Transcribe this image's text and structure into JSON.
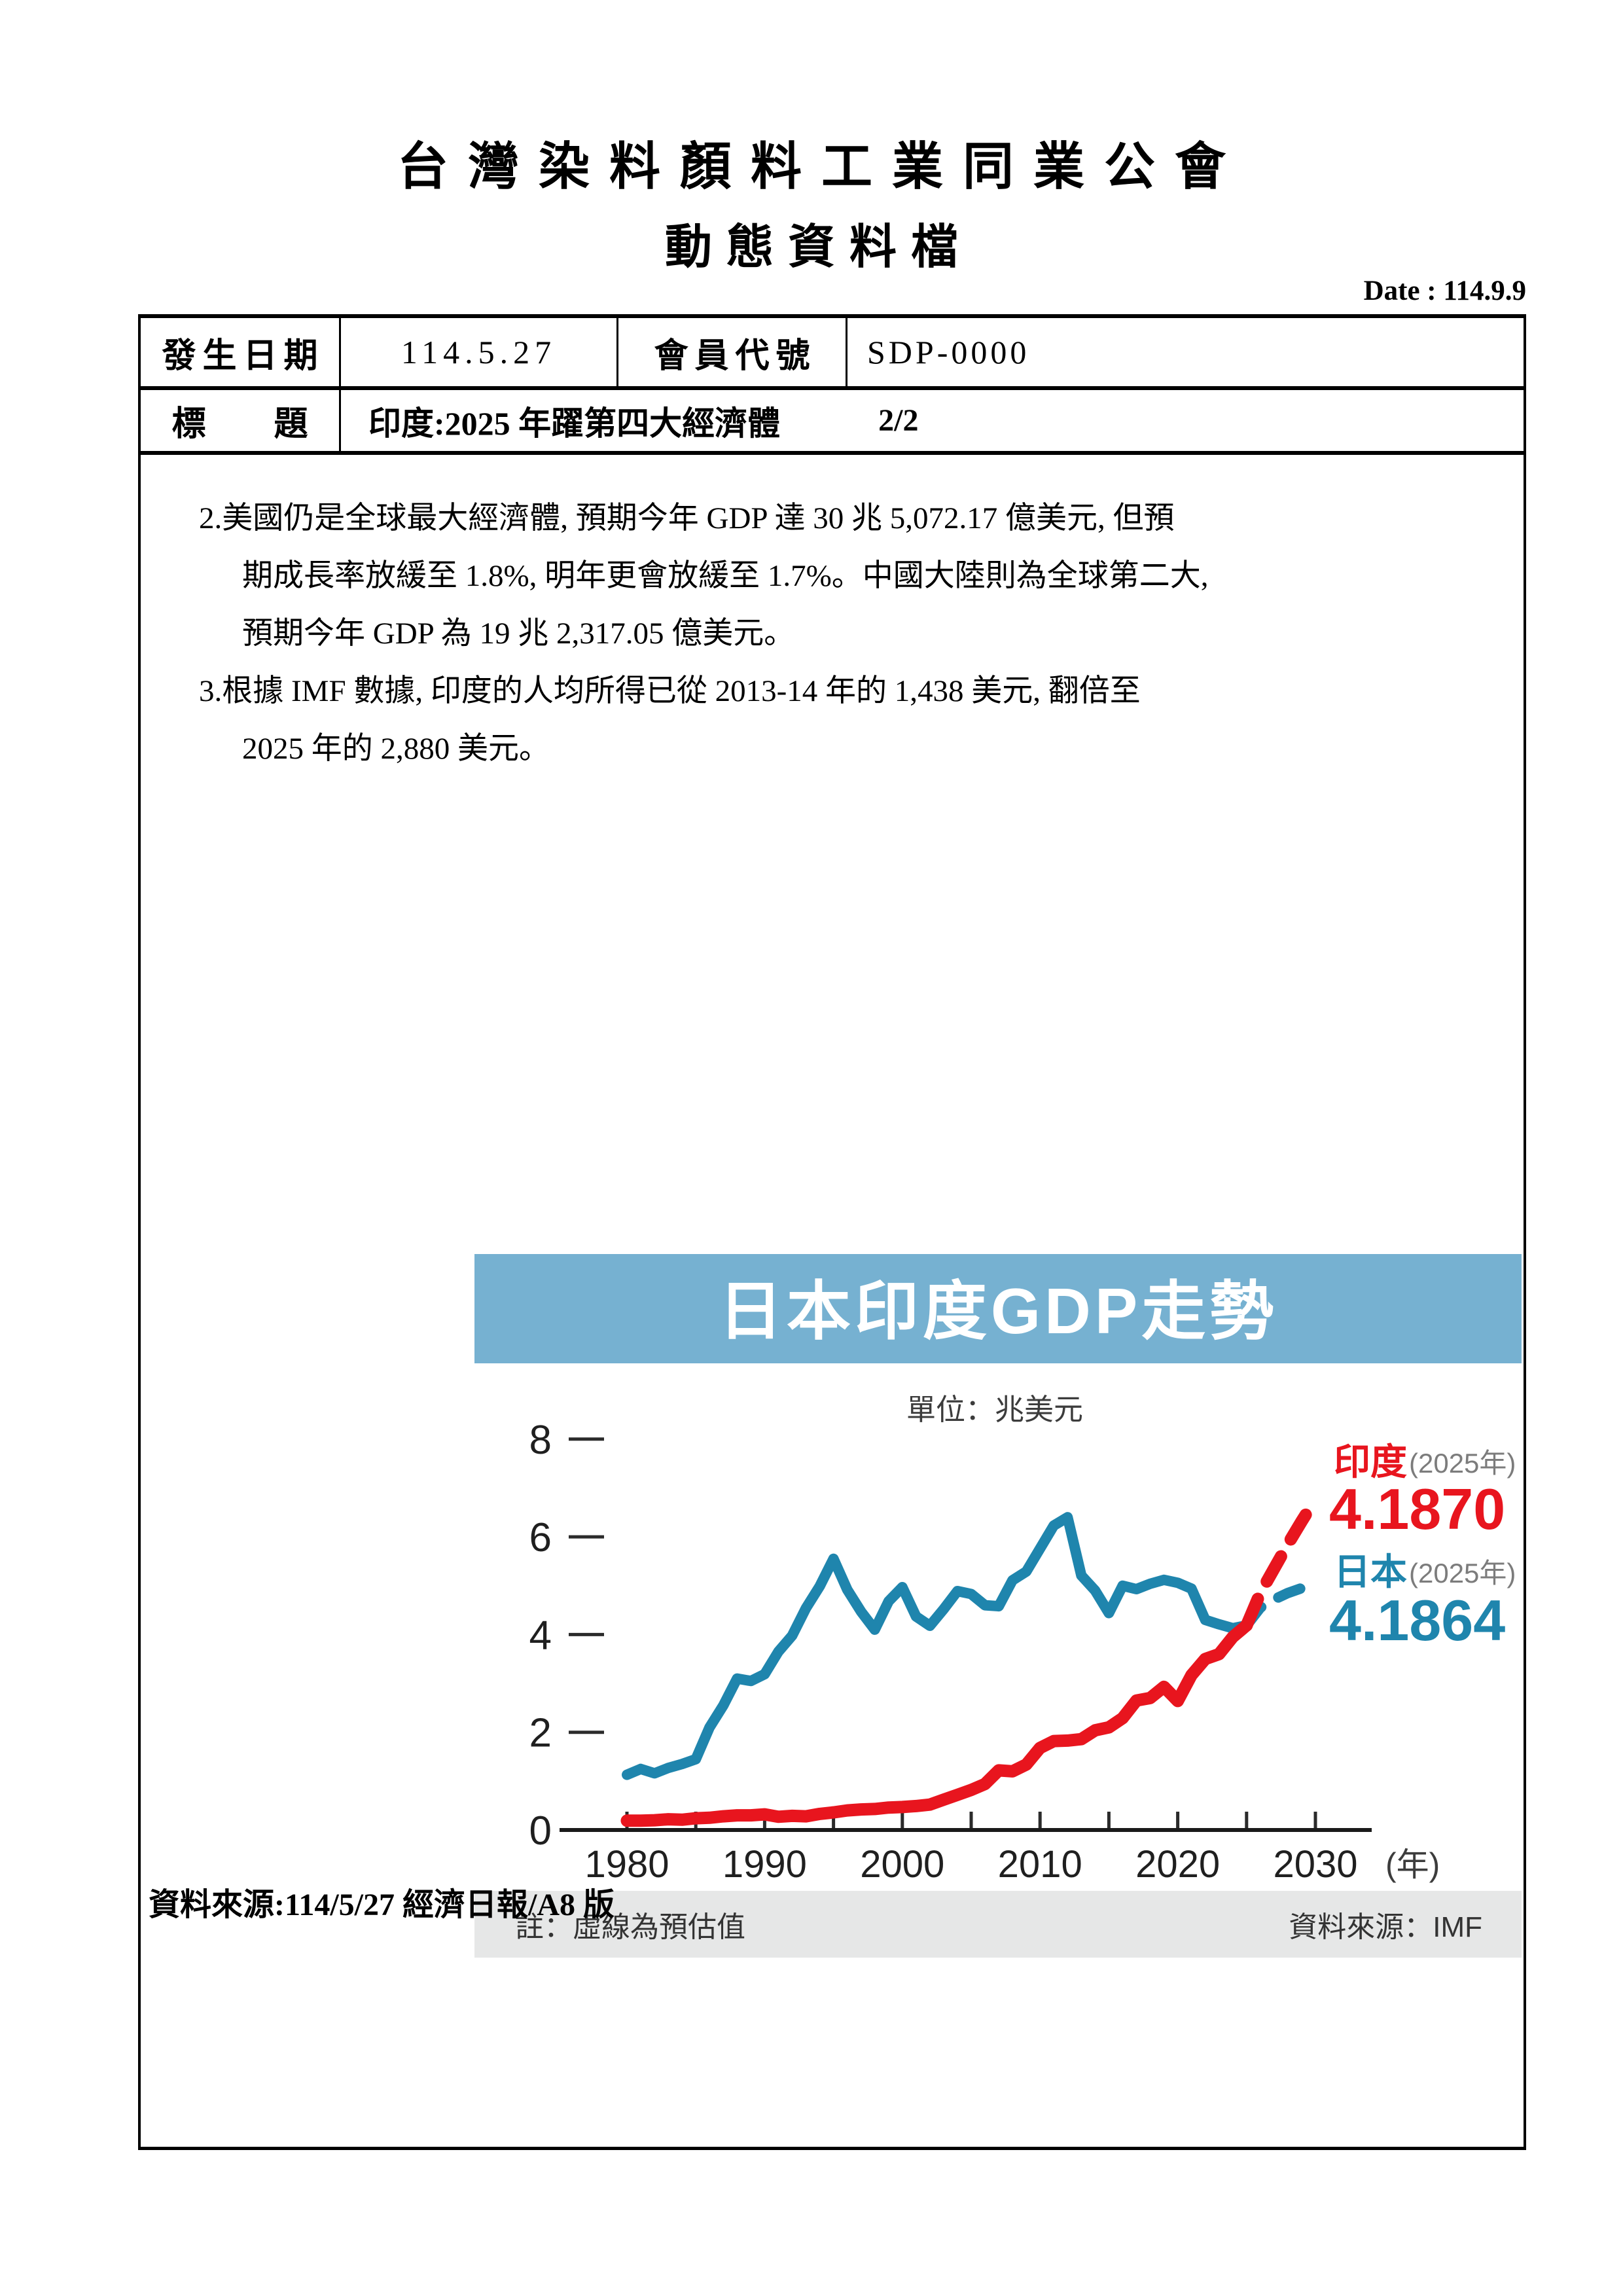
{
  "header": {
    "org_title": "台灣染料顏料工業同業公會",
    "doc_title": "動態資料檔",
    "date_label": "Date : 114.9.9"
  },
  "info_table": {
    "occur_date_label": "發生日期",
    "occur_date_value": "114.5.27",
    "member_code_label": "會員代號",
    "member_code_value": "SDP-0000",
    "subject_label": "標　　題",
    "subject_value": "印度:2025 年躍第四大經濟體",
    "page_indicator": "2/2"
  },
  "body": {
    "paragraphs": [
      {
        "lines": [
          "2.美國仍是全球最大經濟體, 預期今年 GDP 達 30 兆 5,072.17 億美元, 但預",
          "期成長率放緩至 1.8%, 明年更會放緩至 1.7%。中國大陸則為全球第二大,",
          "預期今年 GDP 為 19 兆 2,317.05 億美元。"
        ]
      },
      {
        "lines": [
          "3.根據 IMF 數據, 印度的人均所得已從 2013-14 年的 1,438 美元, 翻倍至",
          "2025 年的 2,880 美元。"
        ]
      }
    ],
    "source_line": "資料來源:114/5/27 經濟日報/A8 版"
  },
  "chart_data": {
    "type": "line",
    "title": "日本印度GDP走勢",
    "unit_label": "單位：兆美元",
    "x_axis_unit": "(年)",
    "note": "註：虛線為預估值",
    "source": "資料來源：IMF",
    "x_ticks": [
      1980,
      1990,
      2000,
      2010,
      2020,
      2030
    ],
    "minor_x_tick_step": 5,
    "y_ticks": [
      0,
      2,
      4,
      6,
      8
    ],
    "ylim": [
      0,
      8
    ],
    "x_range": [
      1980,
      2030
    ],
    "forecast_start_year": 2025,
    "grid": false,
    "series": [
      {
        "name": "日本",
        "label_year": "(2025年)",
        "label_value": "4.1864",
        "color": "#1f85ad",
        "years": [
          1980,
          1981,
          1982,
          1983,
          1984,
          1985,
          1986,
          1987,
          1988,
          1989,
          1990,
          1991,
          1992,
          1993,
          1994,
          1995,
          1996,
          1997,
          1998,
          1999,
          2000,
          2001,
          2002,
          2003,
          2004,
          2005,
          2006,
          2007,
          2008,
          2009,
          2010,
          2011,
          2012,
          2013,
          2014,
          2015,
          2016,
          2017,
          2018,
          2019,
          2020,
          2021,
          2022,
          2023,
          2024,
          2025,
          2026,
          2027,
          2028,
          2029,
          2030
        ],
        "values": [
          1.13,
          1.25,
          1.16,
          1.27,
          1.35,
          1.45,
          2.1,
          2.55,
          3.1,
          3.05,
          3.19,
          3.65,
          3.98,
          4.54,
          4.99,
          5.55,
          4.92,
          4.47,
          4.1,
          4.68,
          4.97,
          4.37,
          4.18,
          4.52,
          4.89,
          4.83,
          4.6,
          4.58,
          5.11,
          5.29,
          5.76,
          6.23,
          6.4,
          5.21,
          4.9,
          4.44,
          5.0,
          4.93,
          5.04,
          5.12,
          5.06,
          4.94,
          4.3,
          4.21,
          4.13,
          4.1864,
          4.55,
          4.72,
          4.85,
          4.95,
          5.05
        ]
      },
      {
        "name": "印度",
        "label_year": "(2025年)",
        "label_value": "4.1870",
        "color": "#e8151e",
        "years": [
          1980,
          1981,
          1982,
          1983,
          1984,
          1985,
          1986,
          1987,
          1988,
          1989,
          1990,
          1991,
          1992,
          1993,
          1994,
          1995,
          1996,
          1997,
          1998,
          1999,
          2000,
          2001,
          2002,
          2003,
          2004,
          2005,
          2006,
          2007,
          2008,
          2009,
          2010,
          2011,
          2012,
          2013,
          2014,
          2015,
          2016,
          2017,
          2018,
          2019,
          2020,
          2021,
          2022,
          2023,
          2024,
          2025,
          2026,
          2027,
          2028,
          2029,
          2030
        ],
        "values": [
          0.19,
          0.19,
          0.2,
          0.22,
          0.21,
          0.24,
          0.25,
          0.28,
          0.3,
          0.3,
          0.32,
          0.27,
          0.29,
          0.28,
          0.33,
          0.36,
          0.4,
          0.42,
          0.43,
          0.46,
          0.47,
          0.49,
          0.52,
          0.62,
          0.72,
          0.82,
          0.94,
          1.22,
          1.2,
          1.34,
          1.68,
          1.82,
          1.83,
          1.86,
          2.04,
          2.1,
          2.29,
          2.65,
          2.7,
          2.93,
          2.64,
          3.17,
          3.5,
          3.6,
          3.95,
          4.187,
          4.85,
          5.35,
          5.85,
          6.32,
          6.77
        ]
      }
    ]
  }
}
